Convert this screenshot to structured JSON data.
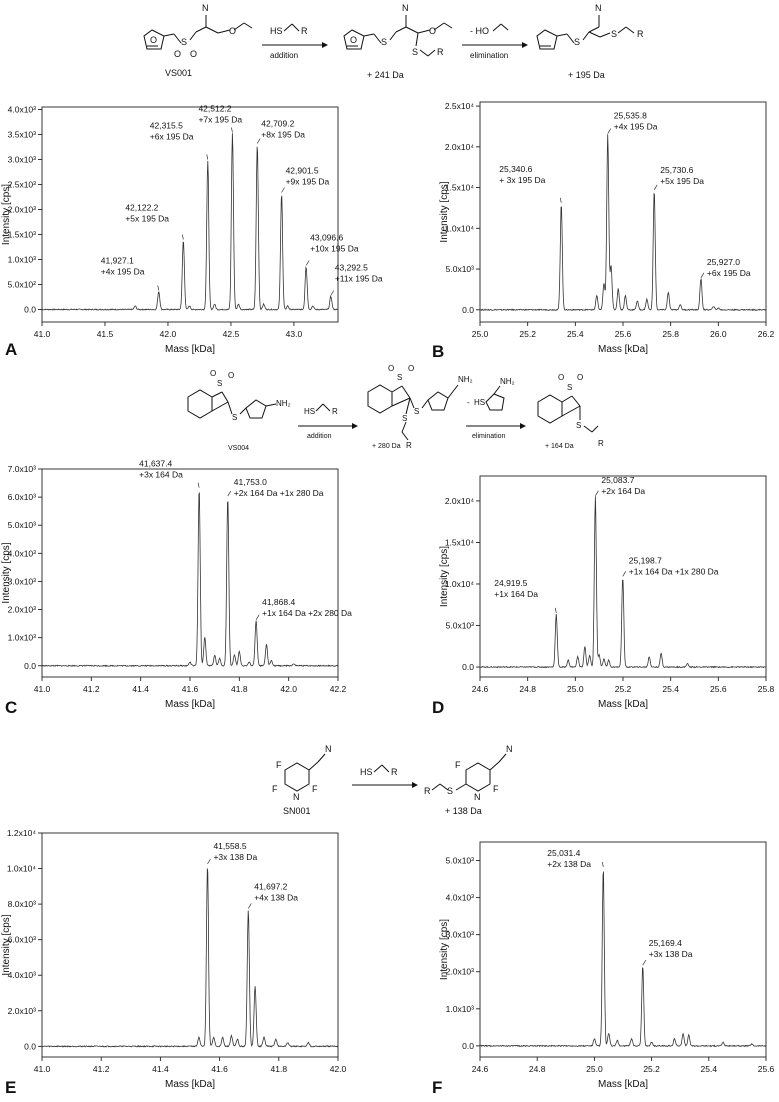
{
  "chart_data": [
    {
      "panel": "A",
      "type": "line",
      "xlabel": "Mass [kDa]",
      "ylabel": "Intensity [cps]",
      "xlim": [
        41.0,
        43.35
      ],
      "ylim": [
        -250,
        4050
      ],
      "xticks": [
        "41.0",
        "41.5",
        "42.0",
        "42.5",
        "43.0"
      ],
      "yticks": [
        "0.0",
        "5.0x10²",
        "1.0x10³",
        "1.5x10³",
        "2.0x10³",
        "2.5x10³",
        "3.0x10³",
        "3.5x10³",
        "4.0x10³"
      ],
      "ytick_values": [
        0,
        500,
        1000,
        1500,
        2000,
        2500,
        3000,
        3500,
        4000
      ],
      "peaks": [
        {
          "x": 41.927,
          "y": 360,
          "label1": "41,927.1",
          "label2": "+4x 195 Da"
        },
        {
          "x": 42.122,
          "y": 1380,
          "label1": "42,122.2",
          "label2": "+5x 195 Da"
        },
        {
          "x": 42.316,
          "y": 2980,
          "label1": "42,315.5",
          "label2": "+6x 195 Da"
        },
        {
          "x": 42.512,
          "y": 3520,
          "label1": "42,512.2",
          "label2": "+7x 195 Da"
        },
        {
          "x": 42.709,
          "y": 3300,
          "label1": "42,709.2",
          "label2": "+8x 195 Da"
        },
        {
          "x": 42.902,
          "y": 2320,
          "label1": "42,901.5",
          "label2": "+9x 195 Da"
        },
        {
          "x": 43.097,
          "y": 860,
          "label1": "43,096.6",
          "label2": "+10x 195 Da"
        },
        {
          "x": 43.293,
          "y": 260,
          "label1": "43,292.5",
          "label2": "+11x 195 Da"
        }
      ]
    },
    {
      "panel": "B",
      "type": "line",
      "xlabel": "Mass [kDa]",
      "ylabel": "Intensity [cps]",
      "xlim": [
        25.0,
        26.2
      ],
      "ylim": [
        -1500,
        25500
      ],
      "xticks": [
        "25.0",
        "25.2",
        "25.4",
        "25.6",
        "25.8",
        "26.0",
        "26.2"
      ],
      "yticks": [
        "0.0",
        "5.0x10³",
        "1.0x10⁴",
        "1.5x10⁴",
        "2.0x10⁴",
        "2.5x10⁴"
      ],
      "ytick_values": [
        0,
        5000,
        10000,
        15000,
        20000,
        25000
      ],
      "peaks": [
        {
          "x": 25.341,
          "y": 13000,
          "label1": "25,340.6",
          "label2": "+ 3x 195 Da"
        },
        {
          "x": 25.536,
          "y": 21500,
          "label1": "25,535.8",
          "label2": "+4x 195 Da"
        },
        {
          "x": 25.731,
          "y": 14600,
          "label1": "25,730.6",
          "label2": "+5x 195 Da"
        },
        {
          "x": 25.927,
          "y": 3800,
          "label1": "25,927.0",
          "label2": "+6x 195 Da"
        }
      ]
    },
    {
      "panel": "C",
      "type": "line",
      "xlabel": "Mass [kDa]",
      "ylabel": "Intensity [cps]",
      "xlim": [
        41.0,
        42.2
      ],
      "ylim": [
        -400,
        7000
      ],
      "xticks": [
        "41.0",
        "41.2",
        "41.4",
        "41.6",
        "41.8",
        "42.0",
        "42.2"
      ],
      "yticks": [
        "0.0",
        "1.0x10³",
        "2.0x10³",
        "3.0x10³",
        "4.0x10³",
        "5.0x10³",
        "6.0x10³",
        "7.0x10³"
      ],
      "ytick_values": [
        0,
        1000,
        2000,
        3000,
        4000,
        5000,
        6000,
        7000
      ],
      "peaks": [
        {
          "x": 41.637,
          "y": 6300,
          "label1": "41,637.4",
          "label2": "+3x 164 Da"
        },
        {
          "x": 41.753,
          "y": 6000,
          "label1": "41,753.0",
          "label2": "+2x 164 Da +1x 280 Da"
        },
        {
          "x": 41.868,
          "y": 1600,
          "label1": "41,868.4",
          "label2": "+1x 164 Da +2x 280 Da"
        }
      ]
    },
    {
      "panel": "D",
      "type": "line",
      "xlabel": "Mass [kDa]",
      "ylabel": "Intensity [cps]",
      "xlim": [
        24.6,
        25.8
      ],
      "ylim": [
        -1200,
        23000
      ],
      "xticks": [
        "24.6",
        "24.8",
        "25.0",
        "25.2",
        "25.4",
        "25.6",
        "25.8"
      ],
      "yticks": [
        "0.0",
        "5.0x10³",
        "1.0x10⁴",
        "1.5x10⁴",
        "2.0x10⁴"
      ],
      "ytick_values": [
        0,
        5000,
        10000,
        15000,
        20000
      ],
      "peaks": [
        {
          "x": 24.92,
          "y": 6400,
          "label1": "24,919.5",
          "label2": "+1x 164 Da"
        },
        {
          "x": 25.084,
          "y": 20500,
          "label1": "25,083.7",
          "label2": "+2x 164 Da"
        },
        {
          "x": 25.199,
          "y": 10800,
          "label1": "25,198.7",
          "label2": "+1x 164 Da +1x 280 Da"
        }
      ]
    },
    {
      "panel": "E",
      "type": "line",
      "xlabel": "Mass [kDa]",
      "ylabel": "Intensity [cps]",
      "xlim": [
        41.0,
        42.0
      ],
      "ylim": [
        -600,
        12000
      ],
      "xticks": [
        "41.0",
        "41.2",
        "41.4",
        "41.6",
        "41.8",
        "42.0"
      ],
      "yticks": [
        "0.0",
        "2.0x10³",
        "4.0x10³",
        "6.0x10³",
        "8.0x10³",
        "1.0x10⁴",
        "1.2x10⁴"
      ],
      "ytick_values": [
        0,
        2000,
        4000,
        6000,
        8000,
        10000,
        12000
      ],
      "peaks": [
        {
          "x": 41.559,
          "y": 10200,
          "label1": "41,558.5",
          "label2": "+3x 138 Da"
        },
        {
          "x": 41.697,
          "y": 7700,
          "label1": "41,697.2",
          "label2": "+4x 138 Da"
        }
      ]
    },
    {
      "panel": "F",
      "type": "line",
      "xlabel": "Mass [kDa]",
      "ylabel": "Intensity [cps]",
      "xlim": [
        24.6,
        25.6
      ],
      "ylim": [
        -300,
        5500
      ],
      "xticks": [
        "24.6",
        "24.8",
        "25.0",
        "25.2",
        "25.4",
        "25.6"
      ],
      "yticks": [
        "0.0",
        "1.0x10³",
        "2.0x10³",
        "3.0x10³",
        "4.0x10³",
        "5.0x10³"
      ],
      "ytick_values": [
        0,
        1000,
        2000,
        3000,
        4000,
        5000
      ],
      "peaks": [
        {
          "x": 25.031,
          "y": 4800,
          "label1": "25,031.4",
          "label2": "+2x 138 Da"
        },
        {
          "x": 25.169,
          "y": 2150,
          "label1": "25,169.4",
          "label2": "+3x 138 Da"
        }
      ]
    }
  ],
  "schemes": {
    "vs001": {
      "compound": "VS001",
      "reagent_hs": "HS",
      "reagent_r": "R",
      "step1": "addition",
      "step2": "elimination",
      "leaving": "- HO",
      "add_mass": "+ 241 Da",
      "final_mass": "+ 195 Da"
    },
    "vs004": {
      "compound": "VS004",
      "reagent_hs": "HS",
      "reagent_r": "R",
      "step1": "addition",
      "step2": "elimination",
      "leaving_sh": "HS",
      "leaving_minus": "-",
      "add_mass": "+ 280 Da",
      "final_mass": "+ 164 Da"
    },
    "sn001": {
      "compound": "SN001",
      "reagent_hs": "HS",
      "reagent_r": "R",
      "final_mass": "+ 138 Da"
    }
  },
  "atoms": {
    "N": "N",
    "O": "O",
    "S": "S",
    "F": "F",
    "R": "R",
    "NH2": "NH₂",
    "H": "H"
  }
}
